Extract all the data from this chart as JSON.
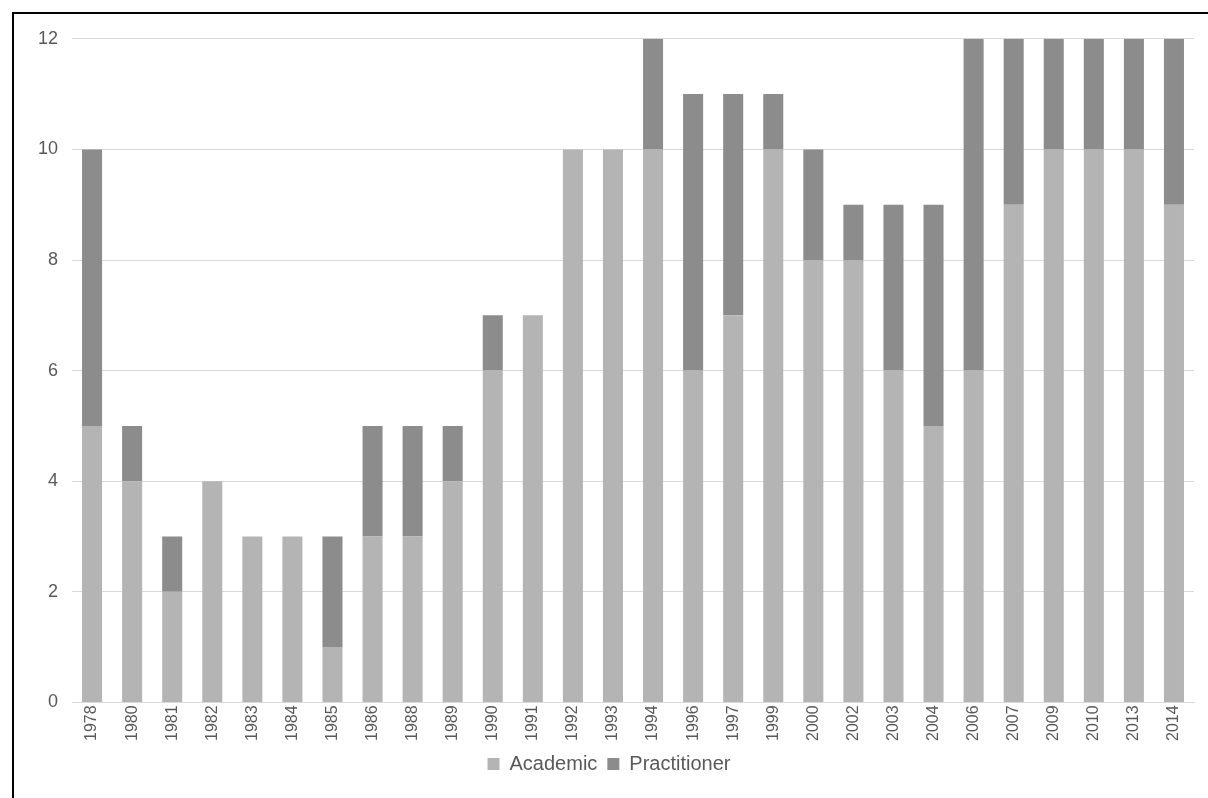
{
  "chart_data": {
    "type": "bar",
    "stacked": true,
    "categories": [
      "1978",
      "1980",
      "1981",
      "1982",
      "1983",
      "1984",
      "1985",
      "1986",
      "1988",
      "1989",
      "1990",
      "1991",
      "1992",
      "1993",
      "1994",
      "1996",
      "1997",
      "1999",
      "2000",
      "2002",
      "2003",
      "2004",
      "2006",
      "2007",
      "2009",
      "2010",
      "2013",
      "2014"
    ],
    "series": [
      {
        "name": "Academic",
        "color": "#b4b4b4",
        "values": [
          5,
          4,
          2,
          4,
          3,
          3,
          1,
          3,
          3,
          4,
          6,
          7,
          10,
          10,
          10,
          6,
          7,
          10,
          8,
          8,
          6,
          5,
          6,
          9,
          10,
          10,
          10,
          9
        ]
      },
      {
        "name": "Practitioner",
        "color": "#8c8c8c",
        "values": [
          5,
          1,
          1,
          0,
          0,
          0,
          2,
          2,
          2,
          1,
          1,
          0,
          0,
          0,
          2,
          5,
          4,
          1,
          2,
          1,
          3,
          4,
          6,
          3,
          2,
          2,
          2,
          3
        ]
      }
    ],
    "ylim": [
      0,
      12
    ],
    "yticks": [
      0,
      2,
      4,
      6,
      8,
      10,
      12
    ],
    "grid": "y",
    "legend": "bottom"
  }
}
